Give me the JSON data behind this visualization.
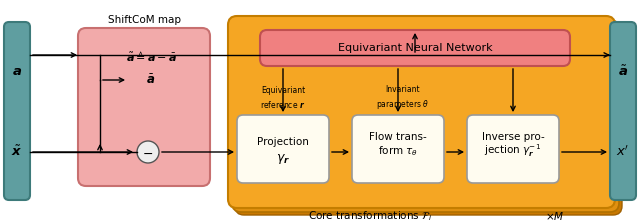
{
  "fig_width": 6.4,
  "fig_height": 2.21,
  "dpi": 100,
  "bg_color": "#ffffff",
  "teal_color": "#5f9ea0",
  "teal_edge": "#3d7a7a",
  "pink_color": "#f2aaaa",
  "pink_edge": "#c87070",
  "orange_color": "#f5a623",
  "orange_edge": "#c47d00",
  "orange_shadow1": "#e89018",
  "orange_shadow2": "#d07800",
  "salmon_color": "#f08080",
  "salmon_edge": "#c05050",
  "cream_color": "#fffcf0",
  "cream_edge": "#999999",
  "title_shiftcom": "ShiftCoM map",
  "title_core": "Core transformations $\\mathcal{F}_i$",
  "label_xM": "$\\times M$"
}
